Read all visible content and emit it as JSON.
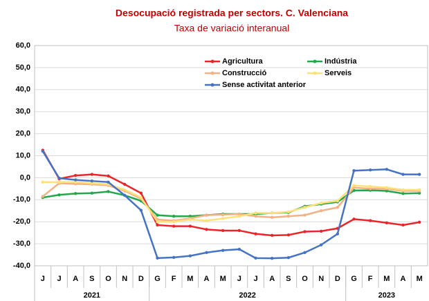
{
  "chart_data": {
    "type": "line",
    "title": "Desocupació registrada per sectors. C. Valenciana",
    "subtitle": "Taxa de variació interanual",
    "categories": [
      "J",
      "J",
      "A",
      "S",
      "O",
      "N",
      "D",
      "G",
      "F",
      "M",
      "A",
      "M",
      "J",
      "J",
      "A",
      "S",
      "O",
      "N",
      "D",
      "G",
      "F",
      "M",
      "A",
      "M"
    ],
    "groups": [
      {
        "label": "2021",
        "count": 7
      },
      {
        "label": "2022",
        "count": 12
      },
      {
        "label": "2023",
        "count": 5
      }
    ],
    "series": [
      {
        "name": "Agricultura",
        "color": "#e8262a",
        "values": [
          12.5,
          -0.5,
          1,
          1.5,
          0.8,
          -3,
          -7,
          -21.5,
          -22,
          -22,
          -23.5,
          -24,
          -24,
          -25.5,
          -26.2,
          -26,
          -24.5,
          -24.3,
          -23,
          -18.8,
          -19.5,
          -20.5,
          -21.5,
          -20.2
        ]
      },
      {
        "name": "Indústria",
        "color": "#20a84a",
        "values": [
          -9,
          -7.8,
          -7.2,
          -7,
          -6.3,
          -8,
          -10.5,
          -17,
          -17.5,
          -17.5,
          -17,
          -16.5,
          -16.5,
          -16.5,
          -16,
          -15.8,
          -13,
          -12,
          -11,
          -5.8,
          -5.7,
          -6,
          -7.2,
          -7
        ]
      },
      {
        "name": "Construcció",
        "color": "#f4b183",
        "values": [
          -8.5,
          -2.5,
          -2.8,
          -3,
          -3.5,
          -6,
          -9.5,
          -19,
          -19.5,
          -18.5,
          -17,
          -16.8,
          -16.5,
          -17.5,
          -18,
          -17.5,
          -17,
          -15,
          -13.5,
          -4.5,
          -5,
          -5,
          -6,
          -6
        ]
      },
      {
        "name": "Serveis",
        "color": "#ffe07a",
        "values": [
          -2,
          -2,
          -2,
          -2.5,
          -3,
          -5.5,
          -9,
          -20,
          -20,
          -19,
          -19.5,
          -18.5,
          -17.5,
          -16,
          -16,
          -15.5,
          -13.5,
          -11.5,
          -10.5,
          -3.5,
          -4,
          -4.5,
          -5.5,
          -5.5
        ]
      },
      {
        "name": "Sense activitat anterior",
        "color": "#4472c4",
        "values": [
          12,
          -0.2,
          -1,
          -1.5,
          -2,
          -8,
          -14.8,
          -36.5,
          -36.2,
          -35.5,
          -34,
          -33,
          -32.5,
          -36.5,
          -36.6,
          -36.3,
          -34,
          -30.5,
          -25.5,
          3.2,
          3.5,
          3.8,
          1.5,
          1.5
        ]
      }
    ],
    "ylim": [
      -40,
      60
    ],
    "yticks": [
      {
        "value": -40,
        "label": "-40,0"
      },
      {
        "value": -30,
        "label": "-30,0"
      },
      {
        "value": -20,
        "label": "-20,0"
      },
      {
        "value": -10,
        "label": "-10,0"
      },
      {
        "value": 0,
        "label": "0,0"
      },
      {
        "value": 10,
        "label": "10,0"
      },
      {
        "value": 20,
        "label": "20,0"
      },
      {
        "value": 30,
        "label": "30,0"
      },
      {
        "value": 40,
        "label": "40,0"
      },
      {
        "value": 50,
        "label": "50,0"
      },
      {
        "value": 60,
        "label": "60,0"
      }
    ],
    "grid": true
  }
}
